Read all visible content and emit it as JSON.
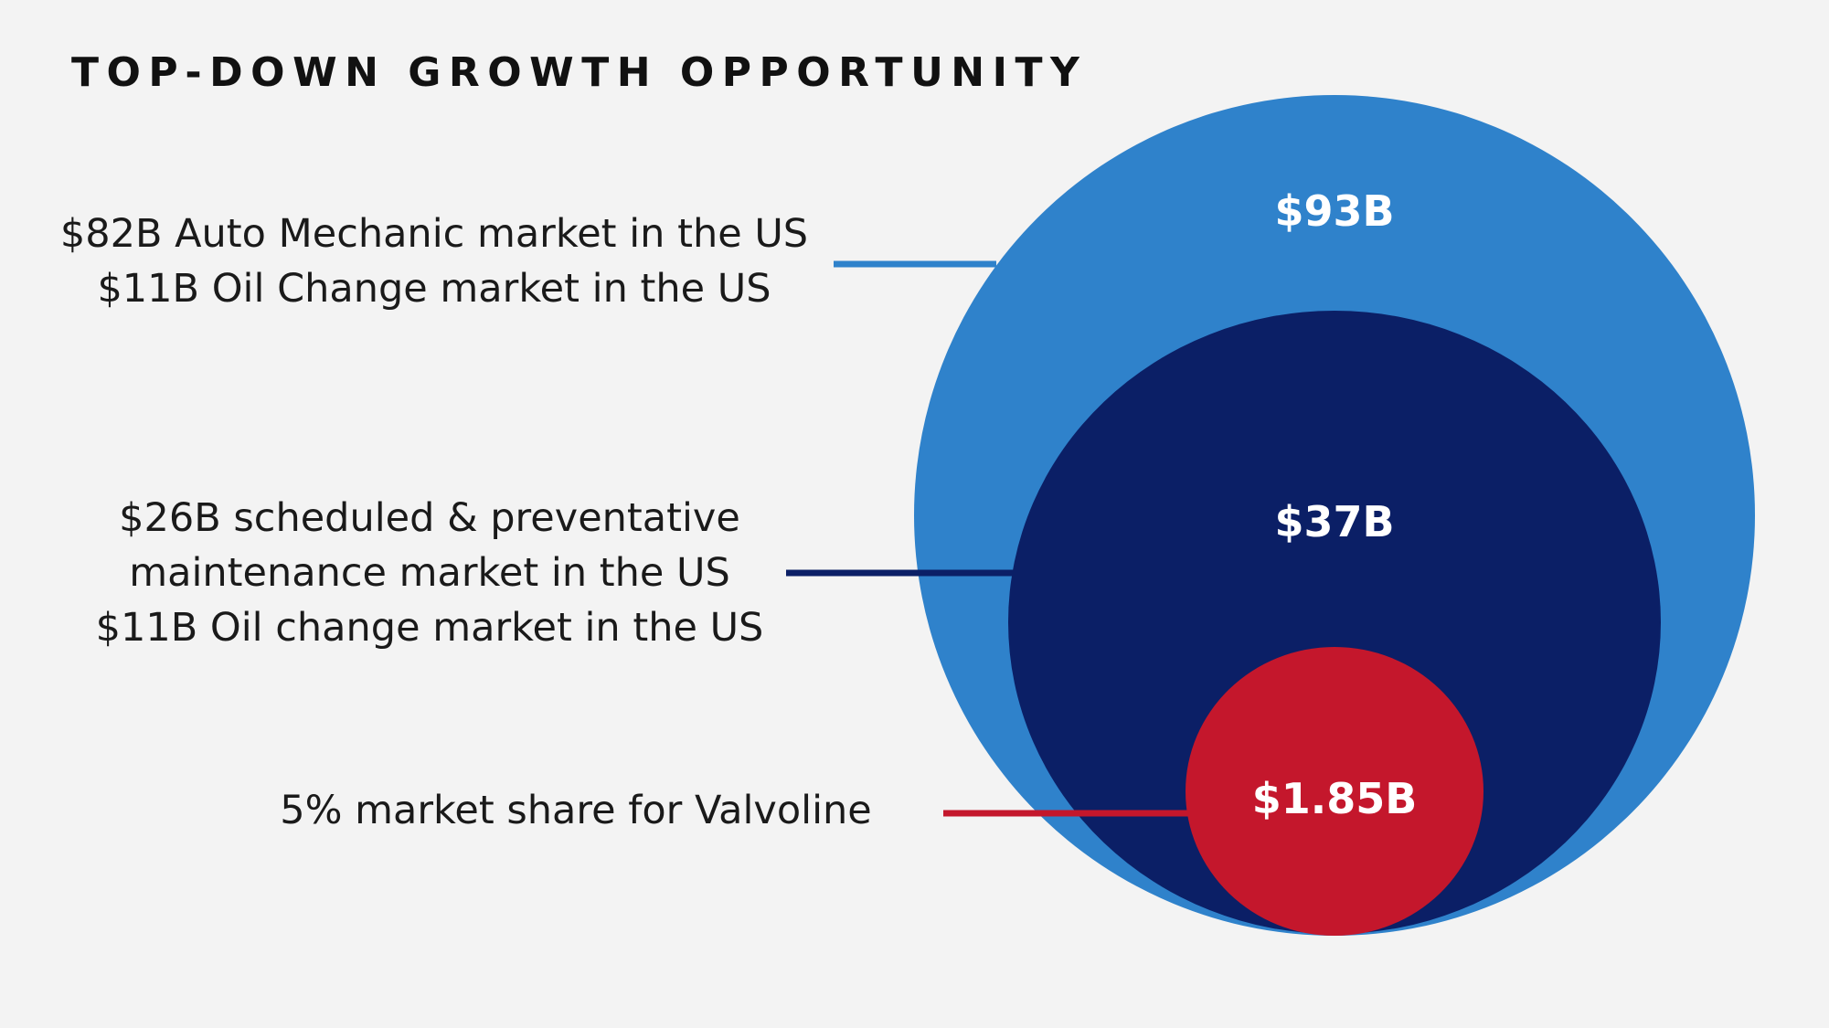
{
  "title": "TOP-DOWN GROWTH OPPORTUNITY",
  "colors": {
    "background": "#f3f3f3",
    "outer_circle": "#2f82cb",
    "middle_circle": "#0b1f66",
    "inner_circle": "#c4172c"
  },
  "circles": [
    {
      "id": "outer",
      "value_label": "$93B"
    },
    {
      "id": "middle",
      "value_label": "$37B"
    },
    {
      "id": "inner",
      "value_label": "$1.85B"
    }
  ],
  "descriptions": [
    {
      "lines": [
        "$82B Auto Mechanic market in the US",
        "$11B Oil Change market in the US"
      ]
    },
    {
      "lines": [
        "$26B scheduled & preventative",
        "maintenance market in the US",
        "$11B Oil change market in the US"
      ]
    },
    {
      "lines": [
        "5% market share for Valvoline"
      ]
    }
  ]
}
